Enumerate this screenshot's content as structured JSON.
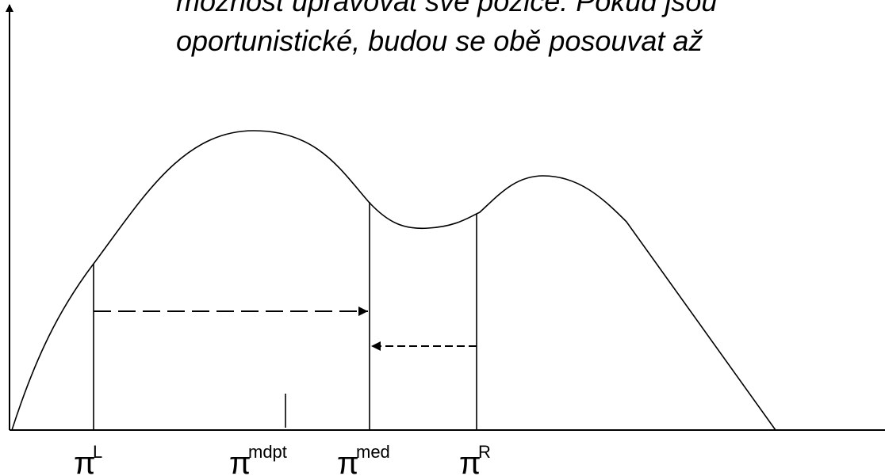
{
  "text": {
    "lines": [
      "možnost upravovat své pozice. Pokud jsou",
      "oportunistické, budou se obě posouvat až"
    ]
  },
  "labels": [
    {
      "symbol": "π",
      "sup": "L"
    },
    {
      "symbol": "π",
      "sup": "mdpt"
    },
    {
      "symbol": "π",
      "sup": "med"
    },
    {
      "symbol": "π",
      "sup": "R"
    }
  ]
}
